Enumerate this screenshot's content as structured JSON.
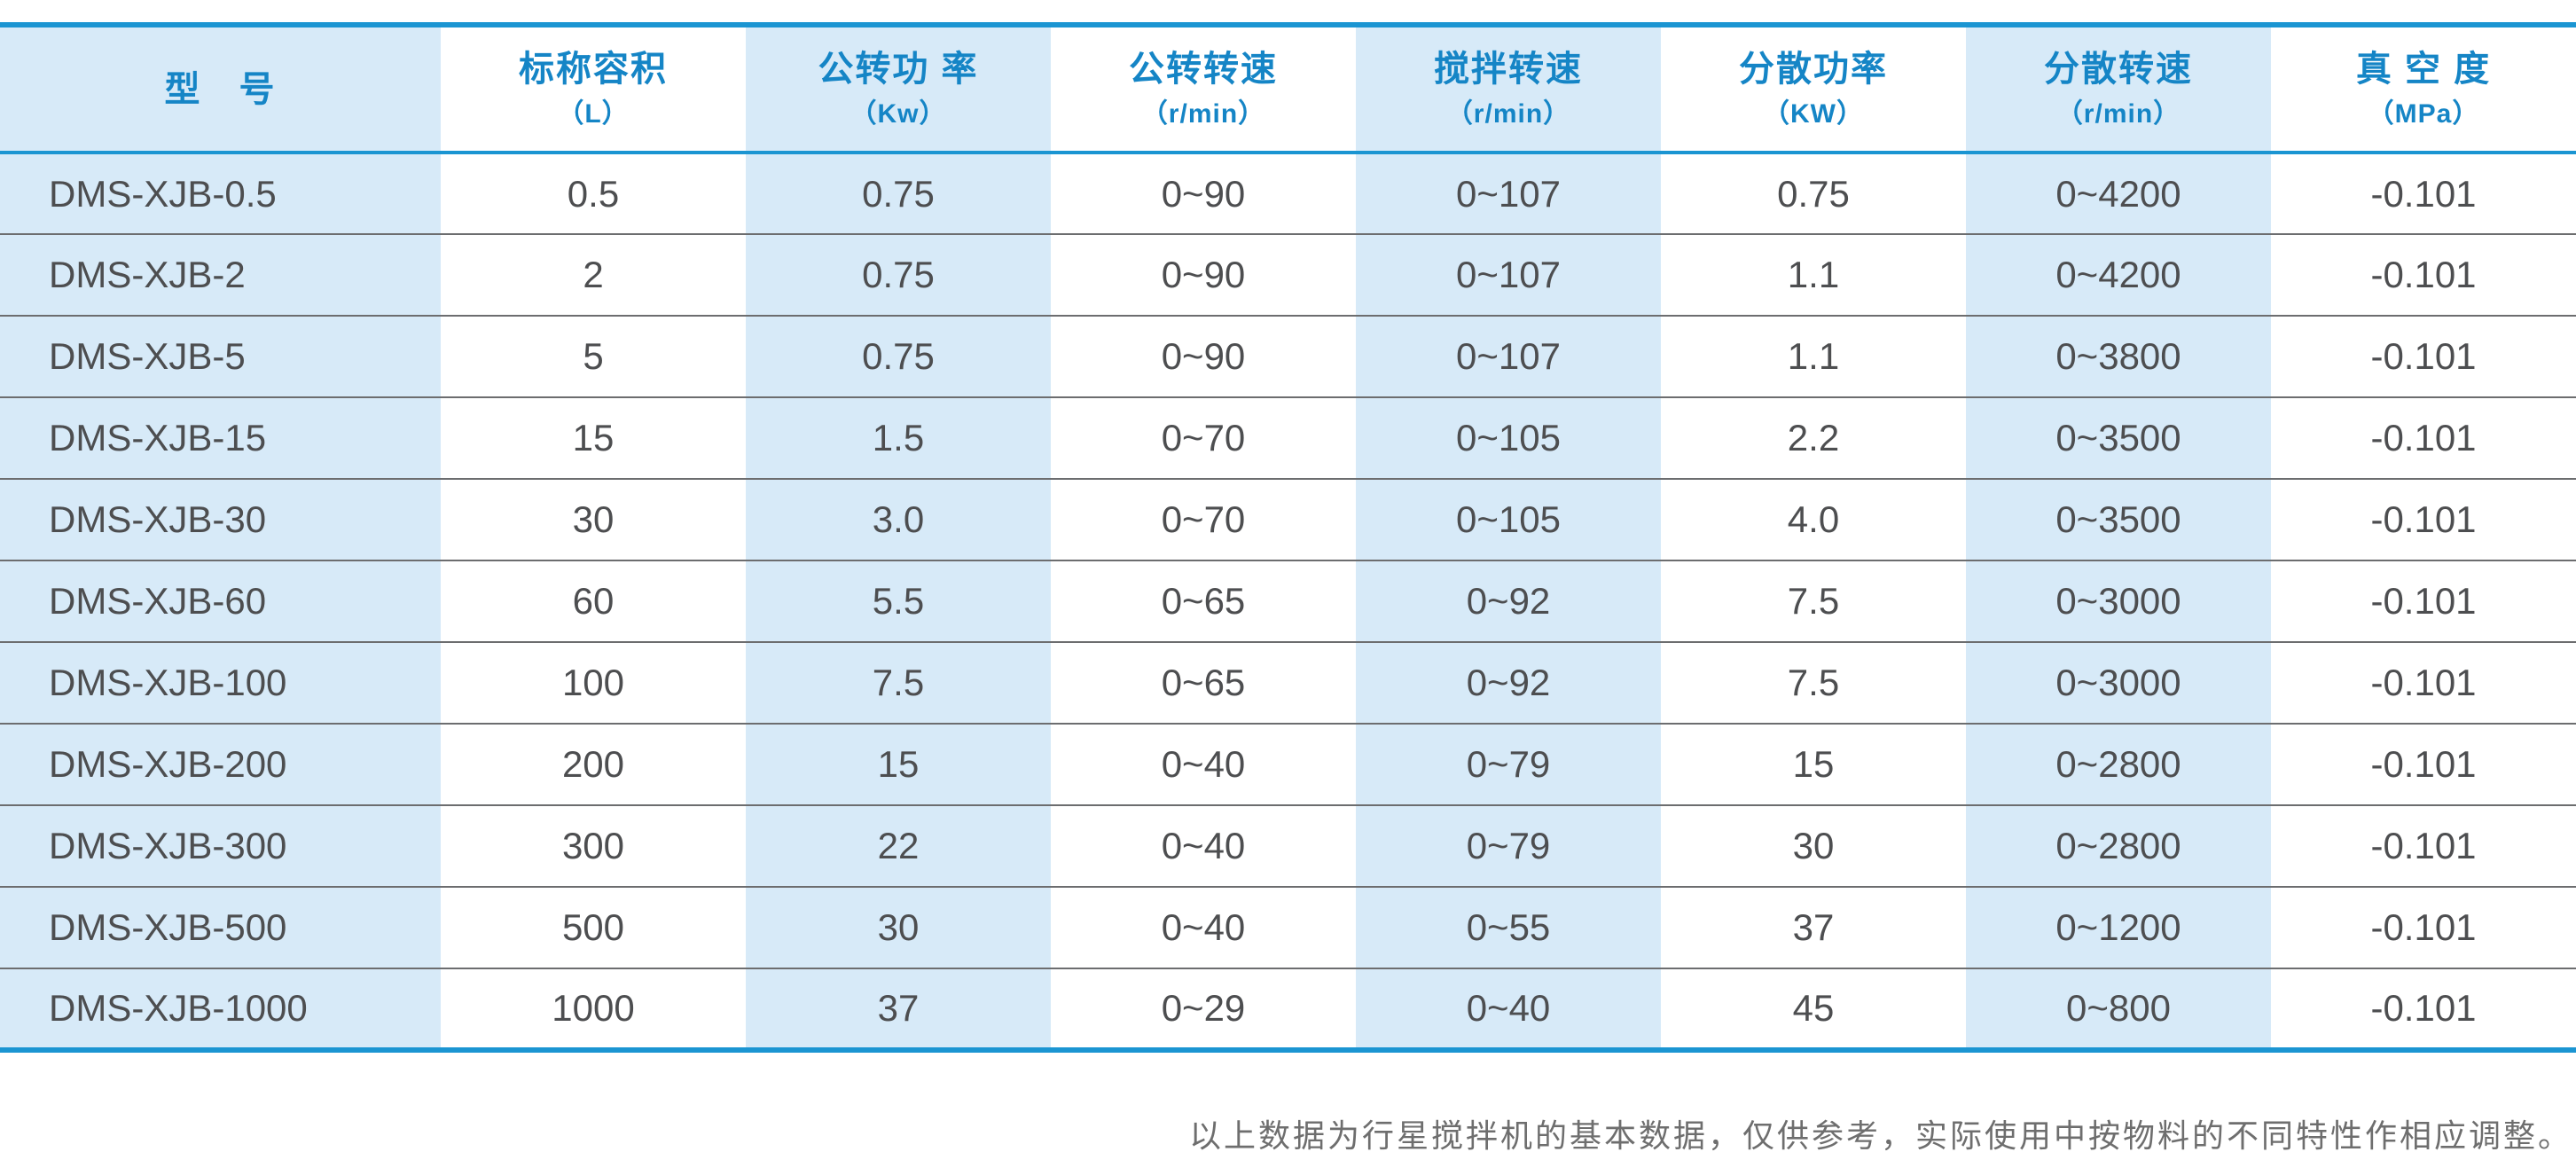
{
  "table": {
    "columns": [
      {
        "label": "型　号",
        "unit": "",
        "shaded": true
      },
      {
        "label": "标称容积",
        "unit": "（L）",
        "shaded": false
      },
      {
        "label": "公转功 率",
        "unit": "（Kw）",
        "shaded": true
      },
      {
        "label": "公转转速",
        "unit": "（r/min）",
        "shaded": false
      },
      {
        "label": "搅拌转速",
        "unit": "（r/min）",
        "shaded": true
      },
      {
        "label": "分散功率",
        "unit": "（KW）",
        "shaded": false
      },
      {
        "label": "分散转速",
        "unit": "（r/min）",
        "shaded": true
      },
      {
        "label": "真 空 度",
        "unit": "（MPa）",
        "shaded": false
      }
    ],
    "rows": [
      [
        "DMS-XJB-0.5",
        "0.5",
        "0.75",
        "0~90",
        "0~107",
        "0.75",
        "0~4200",
        "-0.101"
      ],
      [
        "DMS-XJB-2",
        "2",
        "0.75",
        "0~90",
        "0~107",
        "1.1",
        "0~4200",
        "-0.101"
      ],
      [
        "DMS-XJB-5",
        "5",
        "0.75",
        "0~90",
        "0~107",
        "1.1",
        "0~3800",
        "-0.101"
      ],
      [
        "DMS-XJB-15",
        "15",
        "1.5",
        "0~70",
        "0~105",
        "2.2",
        "0~3500",
        "-0.101"
      ],
      [
        "DMS-XJB-30",
        "30",
        "3.0",
        "0~70",
        "0~105",
        "4.0",
        "0~3500",
        "-0.101"
      ],
      [
        "DMS-XJB-60",
        "60",
        "5.5",
        "0~65",
        "0~92",
        "7.5",
        "0~3000",
        "-0.101"
      ],
      [
        "DMS-XJB-100",
        "100",
        "7.5",
        "0~65",
        "0~92",
        "7.5",
        "0~3000",
        "-0.101"
      ],
      [
        "DMS-XJB-200",
        "200",
        "15",
        "0~40",
        "0~79",
        "15",
        "0~2800",
        "-0.101"
      ],
      [
        "DMS-XJB-300",
        "300",
        "22",
        "0~40",
        "0~79",
        "30",
        "0~2800",
        "-0.101"
      ],
      [
        "DMS-XJB-500",
        "500",
        "30",
        "0~40",
        "0~55",
        "37",
        "0~1200",
        "-0.101"
      ],
      [
        "DMS-XJB-1000",
        "1000",
        "37",
        "0~29",
        "0~40",
        "45",
        "0~800",
        "-0.101"
      ]
    ]
  },
  "footnote": "以上数据为行星搅拌机的基本数据，仅供参考，实际使用中按物料的不同特性作相应调整。",
  "colors": {
    "accent_line": "#1b95d2",
    "header_text": "#1585c6",
    "shaded_cell": "#d7eaf8",
    "body_text": "#4d4e50",
    "row_divider": "#6c6d6f",
    "footnote_text": "#6e6e6e"
  }
}
